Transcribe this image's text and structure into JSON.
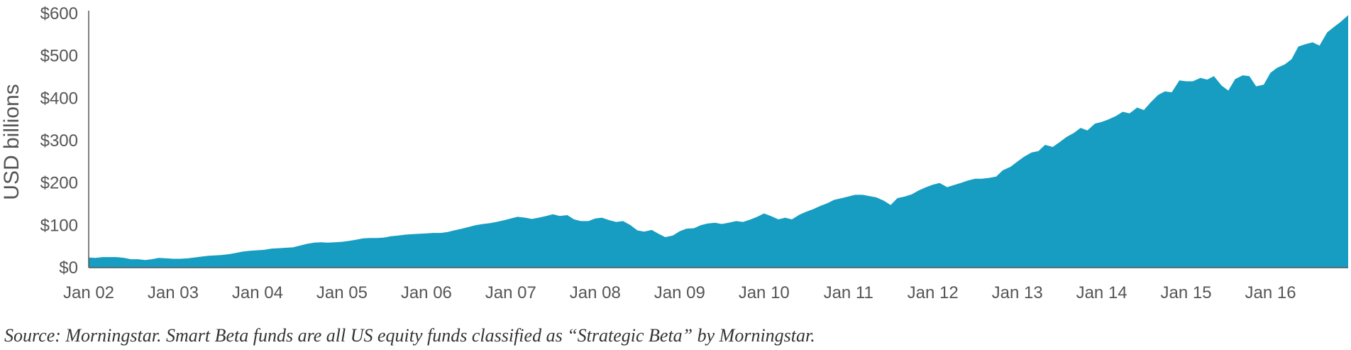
{
  "chart_data": {
    "type": "area",
    "ylabel": "USD billions",
    "ylim": [
      0,
      600
    ],
    "yticks": [
      0,
      100,
      200,
      300,
      400,
      500,
      600
    ],
    "ytick_labels": [
      "$0",
      "$100",
      "$200",
      "$300",
      "$400",
      "$500",
      "$600"
    ],
    "xlim": [
      2002.0,
      2016.92
    ],
    "xticks": [
      2002,
      2003,
      2004,
      2005,
      2006,
      2007,
      2008,
      2009,
      2010,
      2011,
      2012,
      2013,
      2014,
      2015,
      2016
    ],
    "xtick_labels": [
      "Jan 02",
      "Jan 03",
      "Jan 04",
      "Jan 05",
      "Jan 06",
      "Jan 07",
      "Jan 08",
      "Jan 09",
      "Jan 10",
      "Jan 11",
      "Jan 12",
      "Jan 13",
      "Jan 14",
      "Jan 15",
      "Jan 16"
    ],
    "grid": false,
    "fill_color": "#179DC1",
    "x": [
      2002.0,
      2002.08,
      2002.17,
      2002.25,
      2002.33,
      2002.42,
      2002.5,
      2002.58,
      2002.67,
      2002.75,
      2002.83,
      2002.92,
      2003.0,
      2003.08,
      2003.17,
      2003.25,
      2003.33,
      2003.42,
      2003.5,
      2003.58,
      2003.67,
      2003.75,
      2003.83,
      2003.92,
      2004.0,
      2004.08,
      2004.17,
      2004.25,
      2004.33,
      2004.42,
      2004.5,
      2004.58,
      2004.67,
      2004.75,
      2004.83,
      2004.92,
      2005.0,
      2005.08,
      2005.17,
      2005.25,
      2005.33,
      2005.42,
      2005.5,
      2005.58,
      2005.67,
      2005.75,
      2005.83,
      2005.92,
      2006.0,
      2006.08,
      2006.17,
      2006.25,
      2006.33,
      2006.42,
      2006.5,
      2006.58,
      2006.67,
      2006.75,
      2006.83,
      2006.92,
      2007.0,
      2007.08,
      2007.17,
      2007.25,
      2007.33,
      2007.42,
      2007.5,
      2007.58,
      2007.67,
      2007.75,
      2007.83,
      2007.92,
      2008.0,
      2008.08,
      2008.17,
      2008.25,
      2008.33,
      2008.42,
      2008.5,
      2008.58,
      2008.67,
      2008.75,
      2008.83,
      2008.92,
      2009.0,
      2009.08,
      2009.17,
      2009.25,
      2009.33,
      2009.42,
      2009.5,
      2009.58,
      2009.67,
      2009.75,
      2009.83,
      2009.92,
      2010.0,
      2010.08,
      2010.17,
      2010.25,
      2010.33,
      2010.42,
      2010.5,
      2010.58,
      2010.67,
      2010.75,
      2010.83,
      2010.92,
      2011.0,
      2011.08,
      2011.17,
      2011.25,
      2011.33,
      2011.42,
      2011.5,
      2011.58,
      2011.67,
      2011.75,
      2011.83,
      2011.92,
      2012.0,
      2012.08,
      2012.17,
      2012.25,
      2012.33,
      2012.42,
      2012.5,
      2012.58,
      2012.67,
      2012.75,
      2012.83,
      2012.92,
      2013.0,
      2013.08,
      2013.17,
      2013.25,
      2013.33,
      2013.42,
      2013.5,
      2013.58,
      2013.67,
      2013.75,
      2013.83,
      2013.92,
      2014.0,
      2014.08,
      2014.17,
      2014.25,
      2014.33,
      2014.42,
      2014.5,
      2014.58,
      2014.67,
      2014.75,
      2014.83,
      2014.92,
      2015.0,
      2015.08,
      2015.17,
      2015.25,
      2015.33,
      2015.42,
      2015.5,
      2015.58,
      2015.67,
      2015.75,
      2015.83,
      2015.92,
      2016.0,
      2016.08,
      2016.17,
      2016.25,
      2016.33,
      2016.42,
      2016.5,
      2016.58,
      2016.67,
      2016.75,
      2016.83,
      2016.92
    ],
    "values": [
      24,
      23,
      25,
      25,
      25,
      23,
      20,
      20,
      18,
      20,
      23,
      22,
      21,
      21,
      22,
      24,
      26,
      28,
      29,
      30,
      32,
      35,
      38,
      40,
      41,
      42,
      45,
      46,
      47,
      48,
      52,
      56,
      59,
      60,
      59,
      60,
      61,
      63,
      66,
      69,
      70,
      70,
      71,
      74,
      76,
      78,
      79,
      80,
      81,
      82,
      82,
      84,
      88,
      92,
      96,
      100,
      103,
      105,
      108,
      112,
      116,
      120,
      118,
      115,
      118,
      122,
      126,
      122,
      124,
      114,
      110,
      110,
      116,
      118,
      112,
      108,
      110,
      100,
      88,
      85,
      89,
      80,
      72,
      76,
      86,
      92,
      93,
      100,
      104,
      106,
      103,
      106,
      110,
      108,
      113,
      120,
      128,
      122,
      114,
      118,
      114,
      125,
      132,
      138,
      146,
      152,
      160,
      164,
      168,
      172,
      172,
      169,
      166,
      158,
      148,
      164,
      168,
      173,
      182,
      190,
      196,
      200,
      190,
      195,
      200,
      206,
      210,
      210,
      212,
      215,
      230,
      238,
      250,
      262,
      272,
      275,
      290,
      285,
      296,
      308,
      318,
      330,
      324,
      340,
      344,
      350,
      358,
      368,
      364,
      378,
      372,
      390,
      408,
      416,
      414,
      442,
      440,
      440,
      448,
      444,
      452,
      430,
      418,
      445,
      454,
      452,
      428,
      432,
      460,
      472,
      480,
      492,
      522,
      528,
      532,
      524,
      555,
      568,
      580,
      596
    ]
  },
  "source_note": "Source: Morningstar. Smart Beta funds are all US equity funds classified as “Strategic Beta” by Morningstar."
}
